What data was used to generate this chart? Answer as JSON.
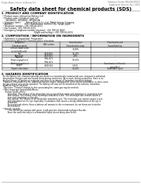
{
  "bg_color": "#ffffff",
  "header_left": "Product Name: Lithium Ion Battery Cell",
  "header_right1": "Substance Control: SDS-049-000010",
  "header_right2": "Established / Revision: Dec.1 2010",
  "title": "Safety data sheet for chemical products (SDS)",
  "section1_title": "1. PRODUCT AND COMPANY IDENTIFICATION",
  "section1_lines": [
    "  • Product name: Lithium Ion Battery Cell",
    "  • Product code: Cylindrical type cell",
    "       SR18650U, SR18650L, SR18650A",
    "  • Company name:        Sanyo Electric Co., Ltd., Mobile Energy Company",
    "  • Address:                  2001  Kamikosaka, Sumoto-City, Hyogo, Japan",
    "  • Telephone number: +81-799-26-4111",
    "  • Fax number: +81-799-26-4121",
    "  • Emergency telephone number (daytime): +81-799-26-3842",
    "                                                     (Night and holiday): +81-799-26-4101"
  ],
  "section2_title": "2. COMPOSITION / INFORMATION ON INGREDIENTS",
  "section2_intro": "  • Substance or preparation: Preparation",
  "section2_sub": "  • Information about the chemical nature of product:",
  "table_col_header": [
    "Component\n(Common name)",
    "CAS number",
    "Concentration /\nConcentration range",
    "Classification and\nhazard labeling"
  ],
  "table_rows": [
    [
      "Lithium cobalt oxide\n(LiCoO2/LiNiCoO2)",
      "-",
      "30-60%",
      "-"
    ],
    [
      "Iron",
      "7439-89-6",
      "15-25%",
      "-"
    ],
    [
      "Aluminum",
      "7429-90-5",
      "2-8%",
      "-"
    ],
    [
      "Graphite\n(Flake or graphite-t)\n(Artificial graphite-t)",
      "7782-42-5\n7782-42-5",
      "10-25%",
      "-"
    ],
    [
      "Copper",
      "7440-50-8",
      "5-15%",
      "Sensitization of the skin\ngroup No.2"
    ],
    [
      "Organic electrolyte",
      "-",
      "10-20%",
      "Flammable liquid"
    ]
  ],
  "table_row_heights": [
    7.5,
    3.5,
    3.5,
    8.5,
    6.0,
    3.5
  ],
  "section3_title": "3. HAZARDS IDENTIFICATION",
  "section3_para": [
    "  For the battery cell, chemical materials are stored in a hermetically sealed metal case, designed to withstand",
    "  temperature changes and mechanical shock during normal use. As a result, during normal use, there is no",
    "  physical danger of ignition or explosion and there is no danger of hazardous materials leakage.",
    "    However, if exposed to a fire, added mechanical shocks, decomposed, when electro-stimulation, in these cases,",
    "  the gas release vent can be operated. The battery cell case will be breached at the extreme, hazardous",
    "  materials may be released.",
    "    Moreover, if heated strongly by the surrounding fire, some gas may be emitted."
  ],
  "section3_bullet1": "  • Most important hazard and effects:",
  "section3_human": "      Human health effects:",
  "section3_human_lines": [
    "          Inhalation: The release of the electrolyte has an anesthesia action and stimulates in respiratory tract.",
    "          Skin contact: The release of the electrolyte stimulates a skin. The electrolyte skin contact causes a",
    "          sore and stimulation on the skin.",
    "          Eye contact: The release of the electrolyte stimulates eyes. The electrolyte eye contact causes a sore",
    "          and stimulation on the eye. Especially, a substance that causes a strong inflammation of the eye is",
    "          contained.",
    "          Environmental effects: Since a battery cell remains in the environment, do not throw out it into the",
    "          environment."
  ],
  "section3_specific": "  • Specific hazards:",
  "section3_specific_lines": [
    "          If the electrolyte contacts with water, it will generate detrimental hydrogen fluoride.",
    "          Since the used electrolyte is a flammable liquid, do not bring close to fire."
  ]
}
